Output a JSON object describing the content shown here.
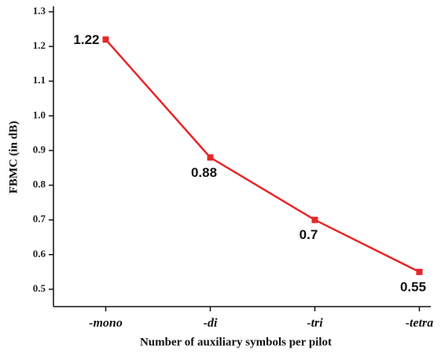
{
  "chart_data": {
    "type": "line",
    "x_label": "Number of auxiliary symbols per pilot",
    "y_label": "FBMC (in dB)",
    "categories": [
      "-mono",
      "-di",
      "-tri",
      "-tetra"
    ],
    "series": [
      {
        "name": "FBMC",
        "color": "#e8262a",
        "values": [
          1.22,
          0.88,
          0.7,
          0.55
        ]
      }
    ],
    "ylim": [
      0.45,
      1.3
    ],
    "yticks": [
      0.5,
      0.6,
      0.7,
      0.8,
      0.9,
      {
        "value": 1,
        "label": "1.0"
      },
      1.1,
      1.2,
      1.3
    ]
  }
}
